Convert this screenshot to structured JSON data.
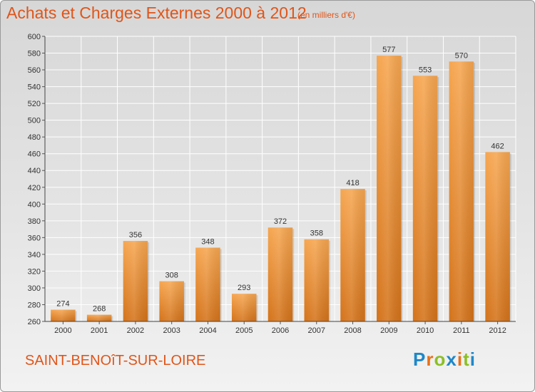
{
  "header": {
    "title": "Achats et Charges Externes 2000 à 2012",
    "subtitle": "(en milliers d'€)"
  },
  "commune": "SAINT-BENOîT-SUR-LOIRE",
  "logo": {
    "text": "Proxiti",
    "colors": [
      "#1f87c8",
      "#e8711a",
      "#8cbf26",
      "#1f87c8",
      "#e8711a",
      "#8cbf26",
      "#1f87c8"
    ]
  },
  "colors": {
    "accent": "#e05519",
    "bar_light": "#f6a650",
    "bar_dark": "#d4731a"
  },
  "chart_data": {
    "type": "bar",
    "categories": [
      "2000",
      "2001",
      "2002",
      "2003",
      "2004",
      "2005",
      "2006",
      "2007",
      "2008",
      "2009",
      "2010",
      "2011",
      "2012"
    ],
    "values": [
      274,
      268,
      356,
      308,
      348,
      293,
      372,
      358,
      418,
      577,
      553,
      570,
      462
    ],
    "ylim": [
      260,
      600
    ],
    "yticks": [
      260,
      280,
      300,
      320,
      340,
      360,
      380,
      400,
      420,
      440,
      460,
      480,
      500,
      520,
      540,
      560,
      580,
      600
    ],
    "grid": true,
    "legend": "none"
  }
}
